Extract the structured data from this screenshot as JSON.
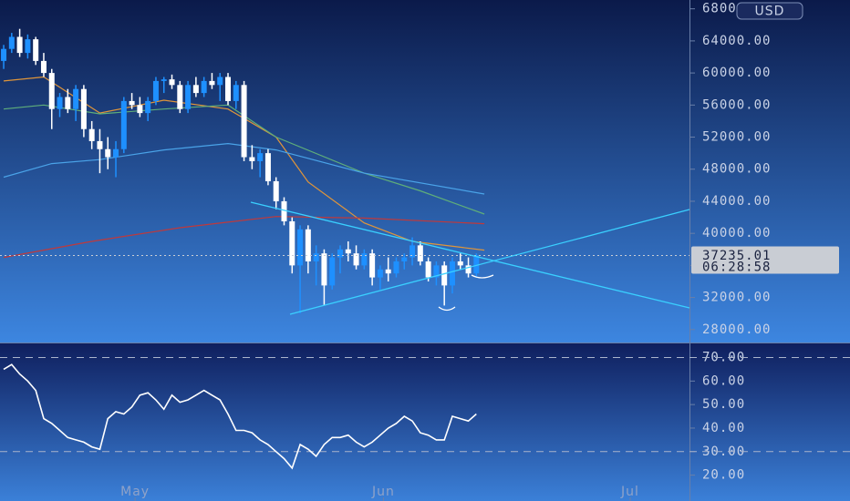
{
  "currency": "USD",
  "countdown": "06:28:58",
  "chart_data": [
    {
      "type": "candlestick",
      "categories": [
        null,
        null,
        null,
        null,
        null,
        null,
        null,
        null,
        null,
        null,
        null,
        null,
        null,
        null,
        null,
        null,
        null,
        null,
        null,
        null,
        null,
        null,
        null,
        null,
        null,
        null,
        null,
        null,
        null,
        null,
        null,
        null,
        null,
        null,
        null,
        null,
        null,
        null,
        null,
        null,
        null,
        null,
        null,
        null,
        null,
        null,
        null,
        null,
        null,
        null,
        null,
        null,
        null,
        null,
        null,
        null,
        null,
        null,
        null,
        null
      ],
      "open": [
        61500,
        63000,
        64500,
        62500,
        64200,
        61500,
        60000,
        55500,
        57000,
        55500,
        58000,
        53000,
        51500,
        50500,
        49500,
        50500,
        56500,
        56000,
        55000,
        56500,
        59000,
        59200,
        58500,
        55500,
        58500,
        57500,
        59000,
        58500,
        59500,
        56500,
        58500,
        49500,
        49000,
        50000,
        46500,
        44000,
        41500,
        36000,
        40500,
        36500,
        37500,
        33500,
        37000,
        38000,
        37500,
        36000,
        37500,
        34500,
        35500,
        35000,
        36500,
        37000,
        38500,
        36500,
        34500,
        36000,
        33500,
        36500,
        36000,
        35000
      ],
      "high": [
        63500,
        65000,
        65500,
        64800,
        64500,
        62500,
        60500,
        57500,
        58000,
        58500,
        58500,
        54000,
        53000,
        52000,
        51500,
        57000,
        57500,
        57000,
        57000,
        59500,
        59500,
        59800,
        59000,
        59000,
        59500,
        59500,
        60000,
        60000,
        60000,
        59000,
        59000,
        51000,
        50500,
        50500,
        47000,
        44500,
        42000,
        41000,
        41000,
        38500,
        38000,
        37500,
        38500,
        39000,
        38500,
        38000,
        38000,
        36000,
        37000,
        37000,
        37500,
        39500,
        39000,
        37000,
        36500,
        36500,
        37000,
        37500,
        37000,
        37500
      ],
      "low": [
        60500,
        62500,
        62000,
        61800,
        61000,
        59500,
        53000,
        54500,
        55000,
        54000,
        52000,
        50500,
        47500,
        48000,
        47000,
        50000,
        55500,
        54500,
        54000,
        56000,
        57500,
        58000,
        55000,
        55000,
        57000,
        57000,
        58000,
        56500,
        56000,
        55500,
        49000,
        48000,
        47000,
        46000,
        43000,
        41000,
        35000,
        30000,
        35000,
        33500,
        31000,
        33000,
        35000,
        36500,
        35500,
        35500,
        33500,
        33000,
        34000,
        34500,
        35500,
        36000,
        36000,
        34000,
        33500,
        31000,
        32500,
        35500,
        34500,
        34500
      ],
      "close": [
        63000,
        64500,
        62500,
        64200,
        61500,
        60000,
        55500,
        57000,
        55500,
        58000,
        53000,
        51500,
        50500,
        49500,
        50500,
        56500,
        56000,
        55000,
        56500,
        59000,
        59200,
        58500,
        55500,
        58500,
        57500,
        59000,
        58500,
        59500,
        56500,
        58500,
        49500,
        49000,
        50000,
        46500,
        44000,
        41500,
        36000,
        40500,
        36500,
        37500,
        33500,
        37000,
        38000,
        37500,
        36000,
        37500,
        34500,
        35500,
        35000,
        36500,
        37000,
        38500,
        36500,
        34500,
        36000,
        33500,
        36500,
        36000,
        35000,
        37235.01
      ],
      "up_color": "#1e90ff",
      "down_color": "#ffffff",
      "overlays": [
        {
          "color": "#e0953a",
          "x": [
            0,
            5,
            12,
            20,
            28,
            34,
            38,
            45,
            51,
            60
          ],
          "values": [
            59000,
            59500,
            55000,
            56600,
            55500,
            52000,
            46400,
            41300,
            39000,
            37900
          ]
        },
        {
          "color": "#5fae7a",
          "x": [
            0,
            5,
            12,
            20,
            28,
            34,
            45,
            52,
            60
          ],
          "values": [
            55500,
            56000,
            54900,
            55500,
            56000,
            52000,
            47500,
            45300,
            42400
          ]
        },
        {
          "color": "#4aa3e8",
          "x": [
            0,
            6,
            12,
            20,
            28,
            34,
            45,
            60
          ],
          "values": [
            47000,
            48700,
            49200,
            50400,
            51200,
            50400,
            47500,
            44900
          ]
        },
        {
          "color": "#c0393b",
          "x": [
            0,
            11,
            22,
            34,
            45,
            60
          ],
          "values": [
            37000,
            39000,
            40700,
            42100,
            41900,
            41200
          ]
        }
      ],
      "xlim": [
        -0.46,
        85.6
      ],
      "ylim": [
        26500,
        69100
      ],
      "yticks": [
        {
          "value": 28000,
          "label": "28000.00"
        },
        {
          "value": 32000,
          "label": "32000.00"
        },
        {
          "value": 36000,
          "label": "36000.00"
        },
        {
          "value": 40000,
          "label": "40000.00"
        },
        {
          "value": 44000,
          "label": "44000.00"
        },
        {
          "value": 48000,
          "label": "48000.00"
        },
        {
          "value": 52000,
          "label": "52000.00"
        },
        {
          "value": 56000,
          "label": "56000.00"
        },
        {
          "value": 60000,
          "label": "60000.00"
        },
        {
          "value": 64000,
          "label": "64000.00"
        },
        {
          "value": 68000,
          "label": "68000.00"
        }
      ]
    },
    {
      "type": "line",
      "color": "#ffffff",
      "values": [
        65,
        67,
        63,
        60,
        56,
        44,
        42,
        39,
        36,
        35,
        34,
        32,
        31,
        44,
        47,
        46,
        49,
        54,
        55,
        52,
        48,
        54,
        51,
        52,
        54,
        56,
        54,
        52,
        46,
        39,
        39,
        38,
        35,
        33,
        30,
        27,
        23,
        33,
        31,
        28,
        33,
        36,
        36,
        37,
        34,
        32,
        34,
        37,
        40,
        42,
        45,
        43,
        38,
        37,
        35,
        35,
        45,
        44,
        43,
        46
      ],
      "levels": [
        70,
        30
      ],
      "xlim": [
        -0.46,
        85.6
      ],
      "xticks": [
        {
          "value": 16.4,
          "label": "May"
        },
        {
          "value": 47.4,
          "label": "Jun"
        },
        {
          "value": 78.2,
          "label": "Jul"
        }
      ],
      "ylim": [
        9,
        76
      ],
      "yticks": [
        {
          "value": 20,
          "label": "20.00"
        },
        {
          "value": 30,
          "label": "30.00"
        },
        {
          "value": 40,
          "label": "40.00"
        },
        {
          "value": 50,
          "label": "50.00"
        },
        {
          "value": 60,
          "label": "60.00"
        },
        {
          "value": 70,
          "label": "70.00"
        }
      ]
    }
  ]
}
